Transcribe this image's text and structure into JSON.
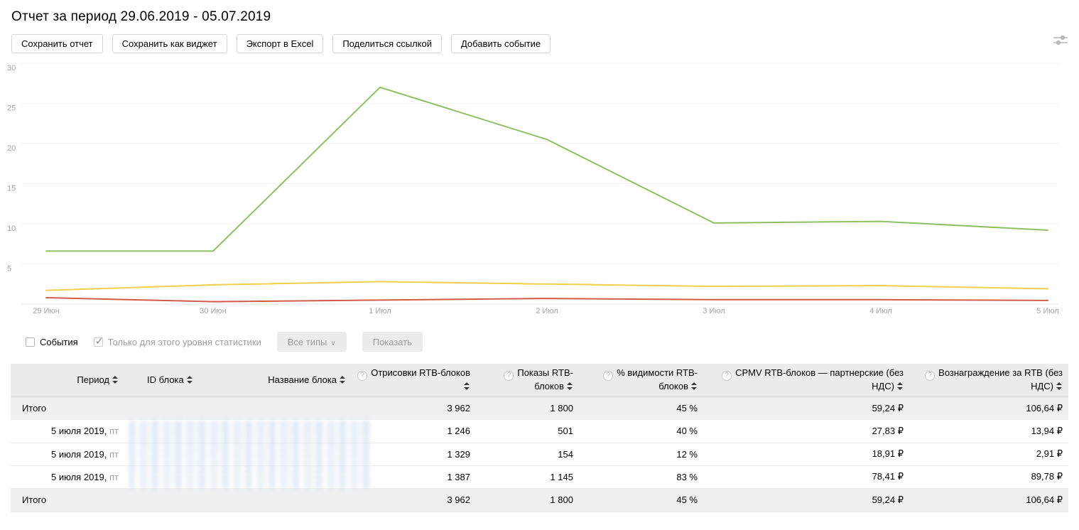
{
  "page": {
    "title": "Отчет за период 29.06.2019 - 05.07.2019"
  },
  "toolbar": {
    "buttons": [
      "Сохранить отчет",
      "Сохранить как виджет",
      "Экспорт в Excel",
      "Поделиться ссылкой",
      "Добавить событие"
    ]
  },
  "icons": {
    "settings": "sliders-icon",
    "help": "circled-question-icon",
    "sort": "sort-arrows-icon",
    "dropdown_chevron": "chevron-down-icon",
    "checkmark": "check-icon"
  },
  "chart_data": {
    "type": "line",
    "x": [
      "29 Июн",
      "30 Июн",
      "1 Июл",
      "2 Июл",
      "3 Июл",
      "4 Июл",
      "5 Июл"
    ],
    "series": [
      {
        "name": "green-line",
        "color": "#8dc063",
        "values": [
          6.6,
          6.6,
          27.0,
          20.5,
          10.1,
          10.3,
          9.2
        ]
      },
      {
        "name": "yellow-line",
        "color": "#f0d04b",
        "values": [
          1.7,
          2.4,
          2.8,
          2.5,
          2.2,
          2.3,
          1.9
        ]
      },
      {
        "name": "red-line",
        "color": "#d05c49",
        "values": [
          0.8,
          0.3,
          0.5,
          0.7,
          0.55,
          0.55,
          0.45
        ]
      }
    ],
    "ylim": [
      0,
      30
    ],
    "yticks": [
      5,
      10,
      15,
      20,
      25,
      30
    ],
    "grid": "horizontal",
    "legend": "none",
    "title": "",
    "xlabel": "",
    "ylabel": ""
  },
  "events_bar": {
    "events_checkbox": {
      "label": "События",
      "checked": false
    },
    "level_checkbox": {
      "label": "Только для этого уровня статистики",
      "checked": true
    },
    "type_select": {
      "value": "Все типы"
    },
    "show_button": "Показать"
  },
  "table": {
    "columns": [
      {
        "label": "Период",
        "sortable": true,
        "help": false
      },
      {
        "label": "ID блока",
        "sortable": true,
        "help": false
      },
      {
        "label": "Название блока",
        "sortable": true,
        "help": false
      },
      {
        "label": "Отрисовки RTB-блоков",
        "sortable": true,
        "help": true
      },
      {
        "label": "Показы RTB-блоков",
        "sortable": true,
        "help": true
      },
      {
        "label": "% видимости RTB-блоков",
        "sortable": true,
        "help": true
      },
      {
        "label": "CPMV RTB-блоков — партнерские (без НДС)",
        "sortable": true,
        "help": true
      },
      {
        "label": "Вознаграждение за RTB (без НДС)",
        "sortable": true,
        "help": true
      }
    ],
    "total_row": {
      "label": "Итого",
      "values": [
        "3 962",
        "1 800",
        "45 %",
        "59,24 ₽",
        "106,64 ₽"
      ]
    },
    "rows": [
      {
        "date": "5 июля 2019,",
        "day": "пт",
        "values": [
          "1 246",
          "501",
          "40 %",
          "27,83 ₽",
          "13,94 ₽"
        ]
      },
      {
        "date": "5 июля 2019,",
        "day": "пт",
        "values": [
          "1 329",
          "154",
          "12 %",
          "18,91 ₽",
          "2,91 ₽"
        ]
      },
      {
        "date": "5 июля 2019,",
        "day": "пт",
        "values": [
          "1 387",
          "1 145",
          "83 %",
          "78,41 ₽",
          "89,78 ₽"
        ]
      }
    ],
    "bottom_total_row": {
      "label": "Итого",
      "values": [
        "3 962",
        "1 800",
        "45 %",
        "59,24 ₽",
        "106,64 ₽"
      ]
    }
  },
  "ui_colors": {
    "table_header_bg": "#ececec",
    "total_row_bg": "#f0f0f0",
    "muted_text": "#9d9d9d",
    "axis_text": "#a3a3a3"
  }
}
